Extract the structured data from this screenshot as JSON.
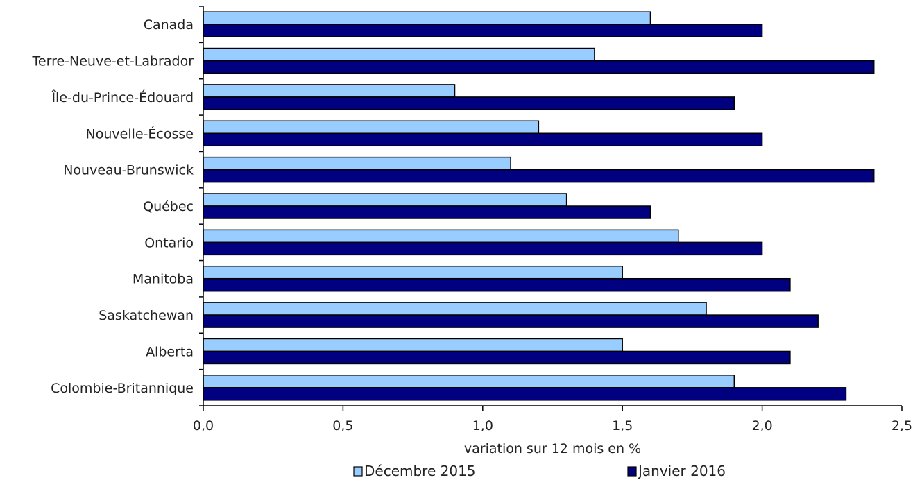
{
  "chart_data": {
    "type": "bar",
    "orientation": "horizontal",
    "title": "",
    "xlabel": "variation sur 12 mois en %",
    "ylabel": "",
    "xlim": [
      0,
      2.5
    ],
    "x_ticks": [
      0,
      0.5,
      1.0,
      1.5,
      2.0,
      2.5
    ],
    "x_tick_labels": [
      "0,0",
      "0,5",
      "1,0",
      "1,5",
      "2,0",
      "2,5"
    ],
    "grid": false,
    "legend_position": "bottom",
    "categories": [
      "Canada",
      "Terre-Neuve-et-Labrador",
      "Île-du-Prince-Édouard",
      "Nouvelle-Écosse",
      "Nouveau-Brunswick",
      "Québec",
      "Ontario",
      "Manitoba",
      "Saskatchewan",
      "Alberta",
      "Colombie-Britannique"
    ],
    "series": [
      {
        "name": "Décembre 2015",
        "color": "#99ccff",
        "values": [
          1.6,
          1.4,
          0.9,
          1.2,
          1.1,
          1.3,
          1.7,
          1.5,
          1.8,
          1.5,
          1.9
        ]
      },
      {
        "name": "Janvier 2016",
        "color": "#000080",
        "values": [
          2.0,
          2.4,
          1.9,
          2.0,
          2.4,
          1.6,
          2.0,
          2.1,
          2.2,
          2.1,
          2.3
        ]
      }
    ]
  }
}
